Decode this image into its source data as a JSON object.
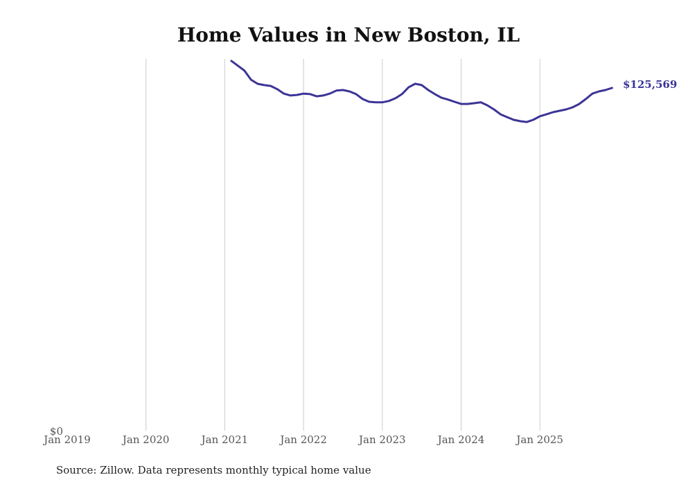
{
  "chart_data": {
    "type": "line",
    "title": "Home Values in New Boston, IL",
    "xlabel": "",
    "ylabel": "",
    "x_tick_labels": [
      "Jan 2019",
      "Jan 2020",
      "Jan 2021",
      "Jan 2022",
      "Jan 2023",
      "Jan 2024",
      "Jan 2025"
    ],
    "y_tick_labels": [
      "$0"
    ],
    "ylim": [
      0,
      140000
    ],
    "xlim": [
      "2019-01",
      "2026-01"
    ],
    "grid": "vertical",
    "line_color": "#3b3496",
    "end_label": "$125,569",
    "source": "Source: Zillow. Data represents monthly typical home value",
    "series": [
      {
        "name": "Typical home value",
        "x": [
          "2021-02",
          "2021-03",
          "2021-04",
          "2021-05",
          "2021-06",
          "2021-07",
          "2021-08",
          "2021-09",
          "2021-10",
          "2021-11",
          "2021-12",
          "2022-01",
          "2022-02",
          "2022-03",
          "2022-04",
          "2022-05",
          "2022-06",
          "2022-07",
          "2022-08",
          "2022-09",
          "2022-10",
          "2022-11",
          "2022-12",
          "2023-01",
          "2023-02",
          "2023-03",
          "2023-04",
          "2023-05",
          "2023-06",
          "2023-07",
          "2023-08",
          "2023-09",
          "2023-10",
          "2023-11",
          "2023-12",
          "2024-01",
          "2024-02",
          "2024-03",
          "2024-04",
          "2024-05",
          "2024-06",
          "2024-07",
          "2024-08",
          "2024-09",
          "2024-10",
          "2024-11",
          "2024-12",
          "2025-01",
          "2025-02",
          "2025-03",
          "2025-04",
          "2025-05",
          "2025-06",
          "2025-07",
          "2025-08",
          "2025-09",
          "2025-10",
          "2025-11",
          "2025-12"
        ],
        "values": [
          135500,
          133700,
          131900,
          128600,
          127100,
          126600,
          126300,
          125100,
          123500,
          122800,
          123000,
          123500,
          123300,
          122500,
          122800,
          123500,
          124600,
          124800,
          124300,
          123300,
          121500,
          120500,
          120300,
          120300,
          120800,
          121800,
          123300,
          125800,
          127100,
          126600,
          124800,
          123300,
          122000,
          121300,
          120500,
          119700,
          119700,
          120000,
          120300,
          119200,
          117700,
          115900,
          114900,
          113900,
          113400,
          113100,
          113900,
          115200,
          115900,
          116700,
          117200,
          117700,
          118500,
          119700,
          121500,
          123500,
          124300,
          124800,
          125569
        ]
      }
    ]
  }
}
